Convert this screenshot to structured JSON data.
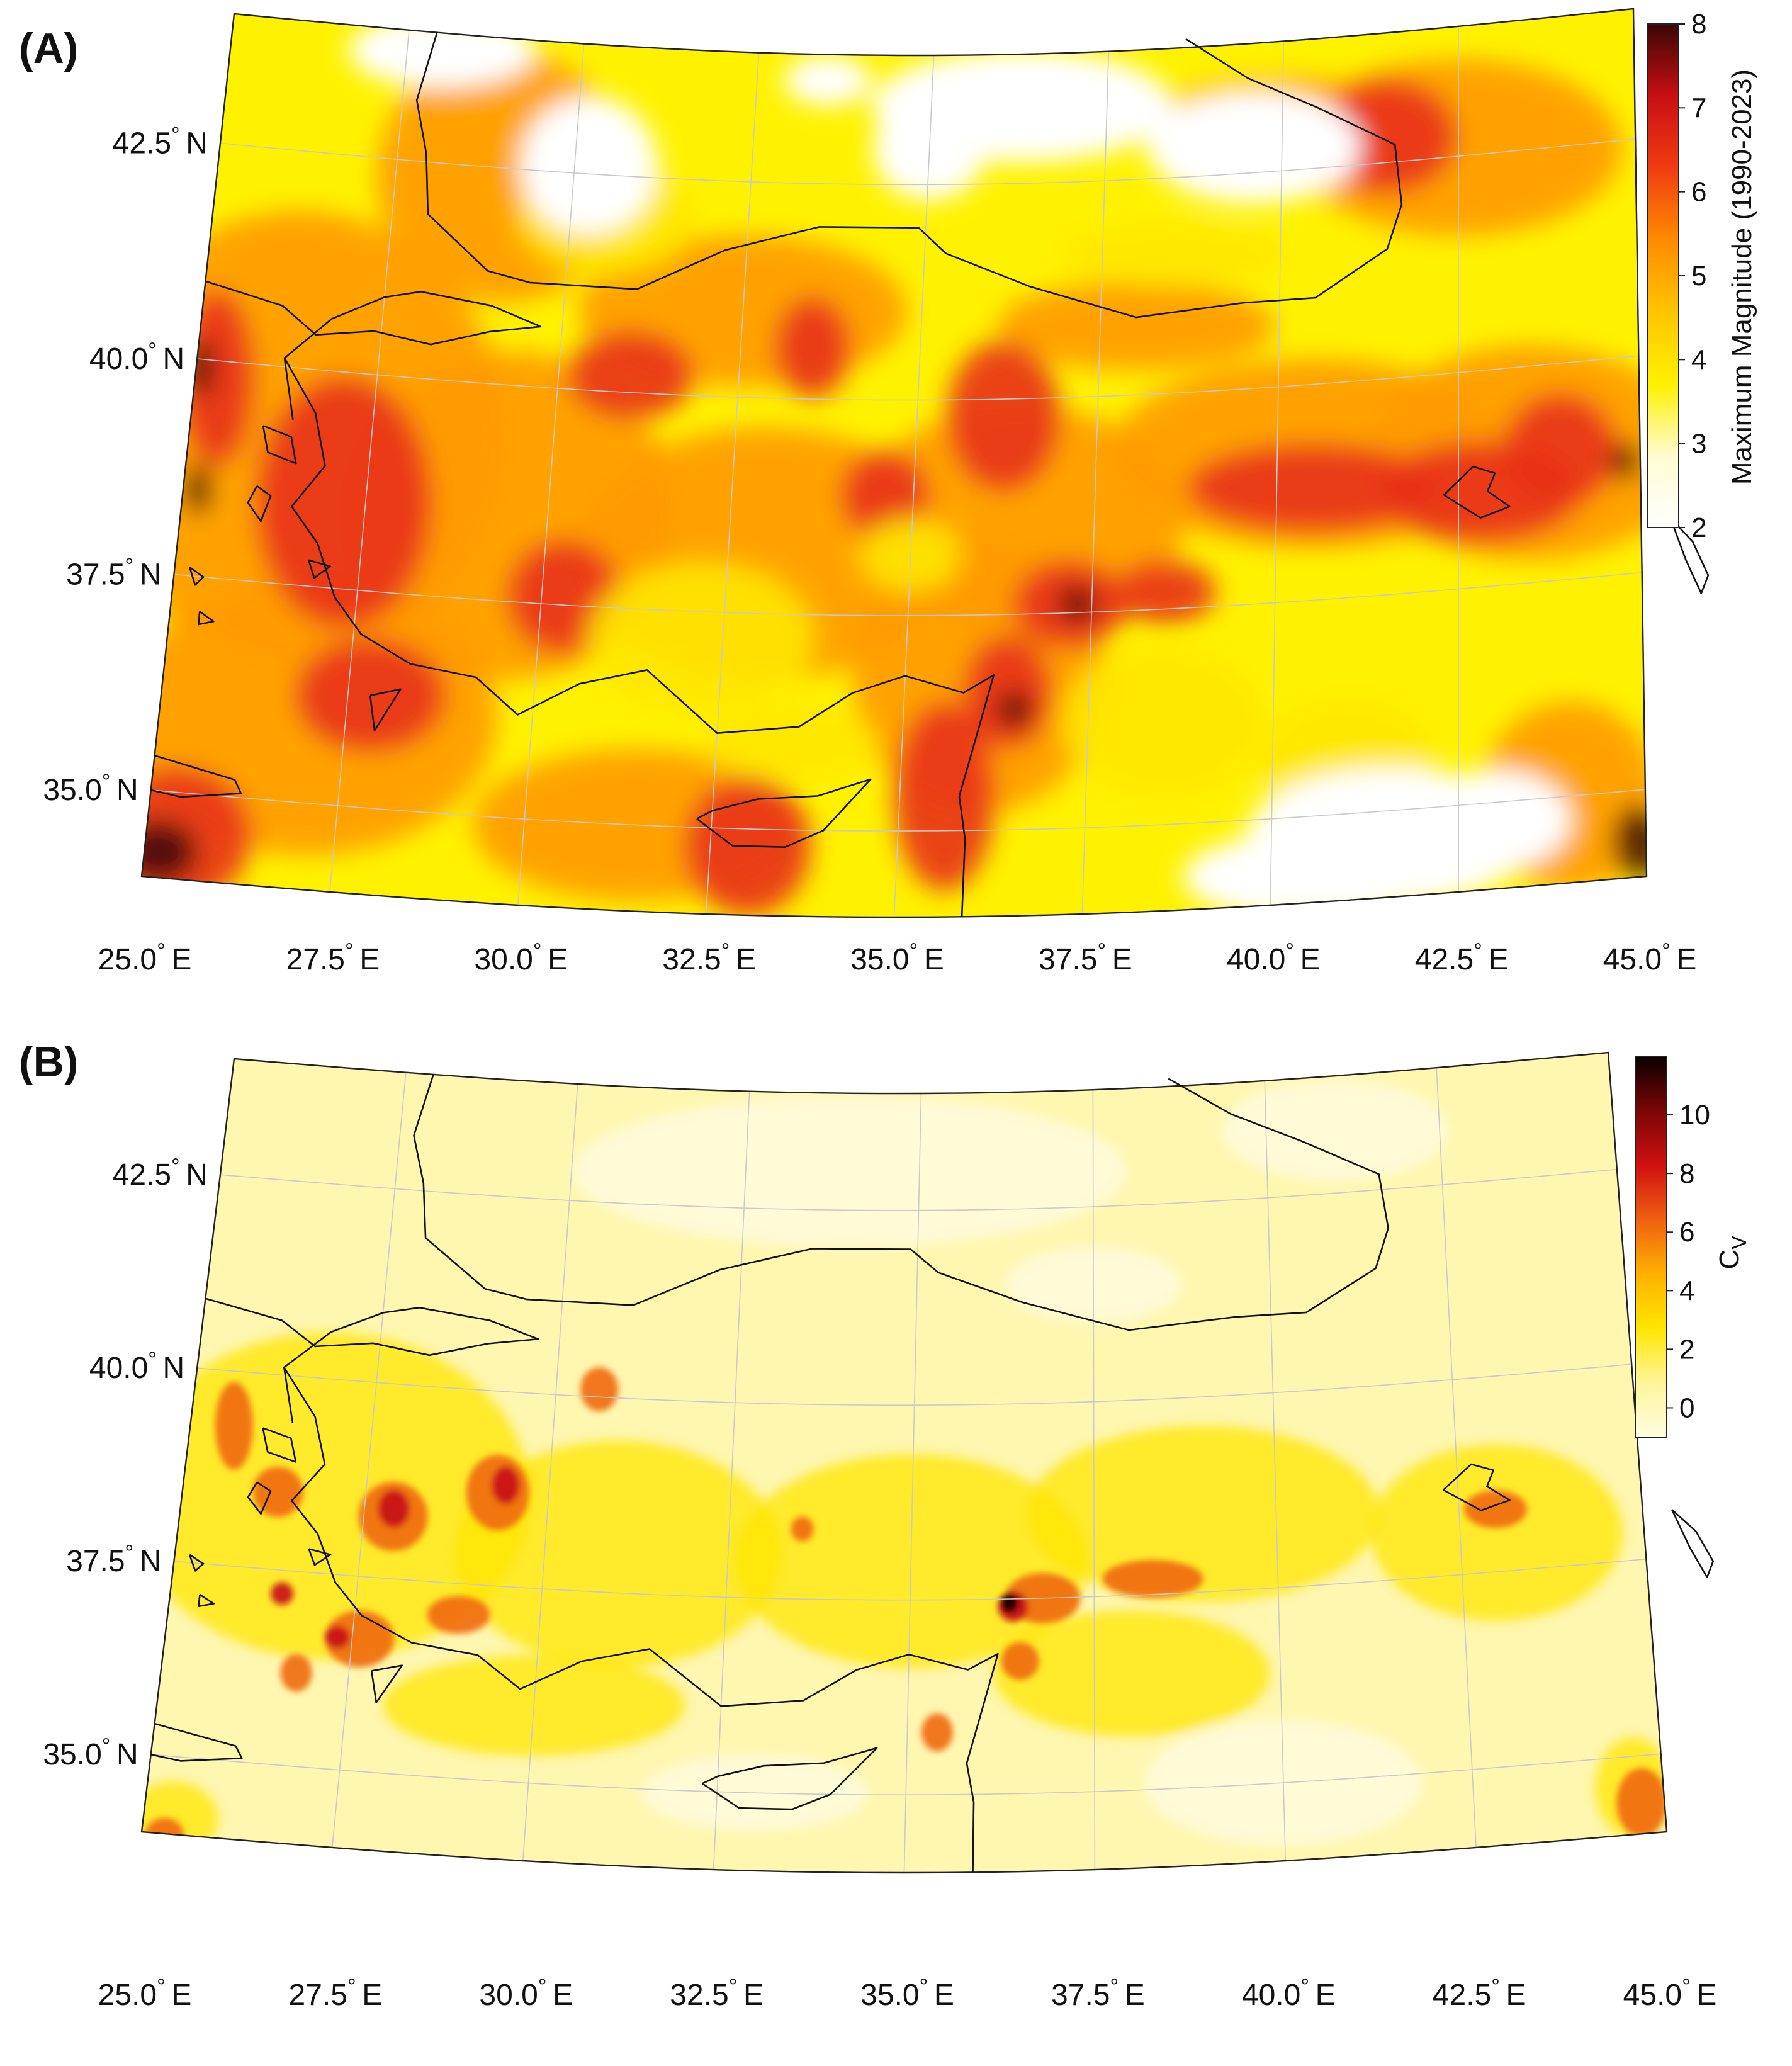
{
  "figure": {
    "panels": [
      {
        "label": "(A)",
        "colorbar": {
          "title": "Maximum Magnitude (1990-2023)",
          "ticks": [
            "8",
            "7",
            "6",
            "5",
            "4",
            "3",
            "2"
          ],
          "range": [
            2,
            8
          ],
          "colors": [
            "#ffffff",
            "#fffbd0",
            "#fff000",
            "#ffc400",
            "#ff8b00",
            "#f03c12",
            "#c80f14",
            "#3a0605"
          ]
        },
        "lat_labels": [
          "42.5° N",
          "40.0° N",
          "37.5° N",
          "35.0° N"
        ],
        "lon_labels": [
          "25.0° E",
          "27.5° E",
          "30.0° E",
          "32.5° E",
          "35.0° E",
          "37.5° E",
          "40.0° E",
          "42.5° E",
          "45.0° E"
        ]
      },
      {
        "label": "(B)",
        "colorbar": {
          "title_main": "C",
          "title_sub": "V",
          "ticks": [
            "10",
            "8",
            "6",
            "4",
            "2",
            "0"
          ],
          "range": [
            -1,
            12
          ],
          "colors": [
            "#fffde0",
            "#fff59a",
            "#ffe600",
            "#ffb000",
            "#f06010",
            "#d01010",
            "#7a0606",
            "#0a0000"
          ]
        },
        "lat_labels": [
          "42.5° N",
          "40.0° N",
          "37.5° N",
          "35.0° N"
        ],
        "lon_labels": [
          "25.0° E",
          "27.5° E",
          "30.0° E",
          "32.5° E",
          "35.0° E",
          "37.5° E",
          "40.0° E",
          "42.5° E",
          "45.0° E"
        ]
      }
    ]
  }
}
